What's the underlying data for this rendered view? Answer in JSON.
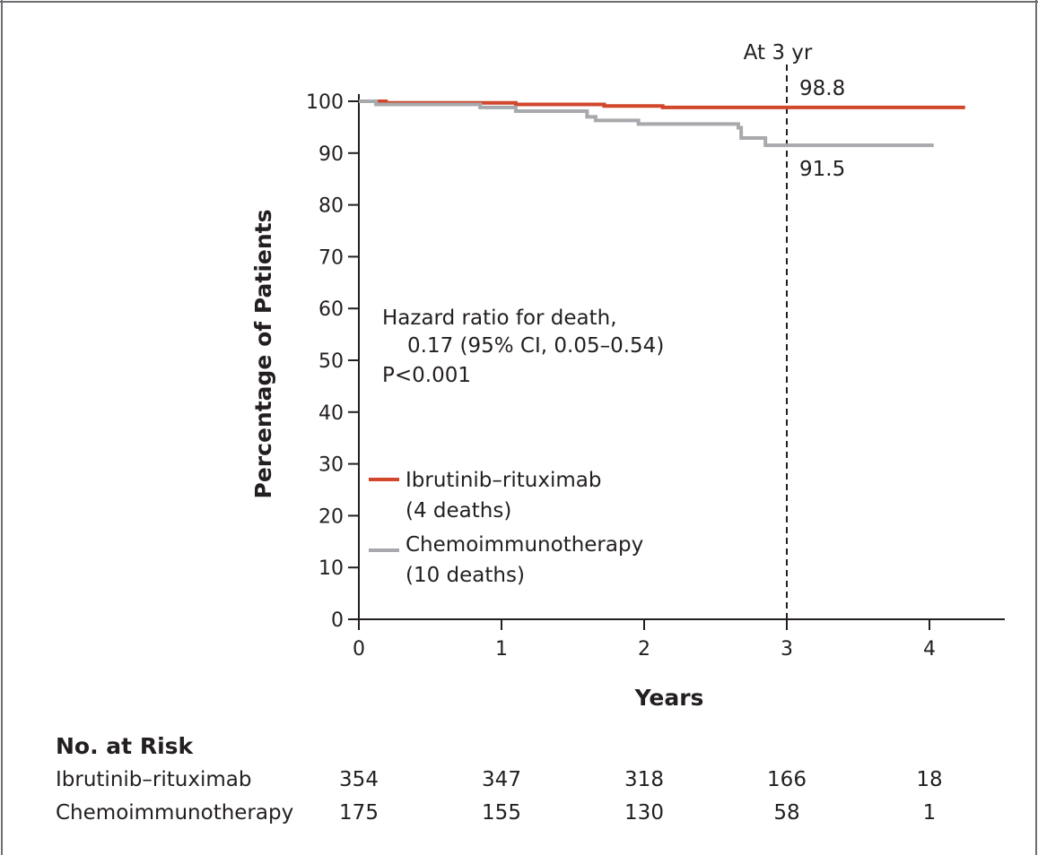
{
  "chart_data": {
    "type": "line",
    "ylabel": "Percentage of Patients",
    "xlabel": "Years",
    "xlim": [
      0,
      4.5
    ],
    "ylim": [
      0,
      100
    ],
    "x_ticks": [
      0,
      1,
      2,
      3,
      4
    ],
    "y_ticks": [
      0,
      10,
      20,
      30,
      40,
      50,
      60,
      70,
      80,
      90,
      100
    ],
    "grid": false,
    "legend_position": "left-center",
    "series": [
      {
        "name": "Ibrutinib–rituximab",
        "legend_note": "(4 deaths)",
        "color": "#d1472c",
        "step_points": [
          [
            0,
            100
          ],
          [
            0.19,
            99.7
          ],
          [
            1.1,
            99.4
          ],
          [
            1.72,
            99.1
          ],
          [
            2.13,
            98.8
          ],
          [
            4.25,
            98.8
          ]
        ]
      },
      {
        "name": "Chemoimmunotherapy",
        "legend_note": "(10 deaths)",
        "color": "#a7a9ac",
        "step_points": [
          [
            0,
            100
          ],
          [
            0.12,
            99.4
          ],
          [
            0.85,
            98.8
          ],
          [
            1.1,
            98.1
          ],
          [
            1.6,
            97.0
          ],
          [
            1.66,
            96.3
          ],
          [
            1.96,
            95.6
          ],
          [
            2.66,
            94.9
          ],
          [
            2.68,
            92.9
          ],
          [
            2.85,
            91.5
          ],
          [
            4.03,
            91.5
          ]
        ]
      }
    ],
    "reference_line": {
      "x": 3,
      "label": "At 3 yr",
      "style": "dashed"
    },
    "annotations": {
      "value_ibrutinib": "98.8",
      "value_chemo": "91.5",
      "hazard_line1": "Hazard ratio for death,",
      "hazard_line2": "0.17 (95% CI, 0.05–0.54)",
      "p_value": "P<0.001"
    },
    "risk_table": {
      "title": "No. at Risk",
      "rows": [
        {
          "label": "Ibrutinib–rituximab",
          "values": [
            354,
            347,
            318,
            166,
            18
          ]
        },
        {
          "label": "Chemoimmunotherapy",
          "values": [
            175,
            155,
            130,
            58,
            1
          ]
        }
      ]
    }
  }
}
